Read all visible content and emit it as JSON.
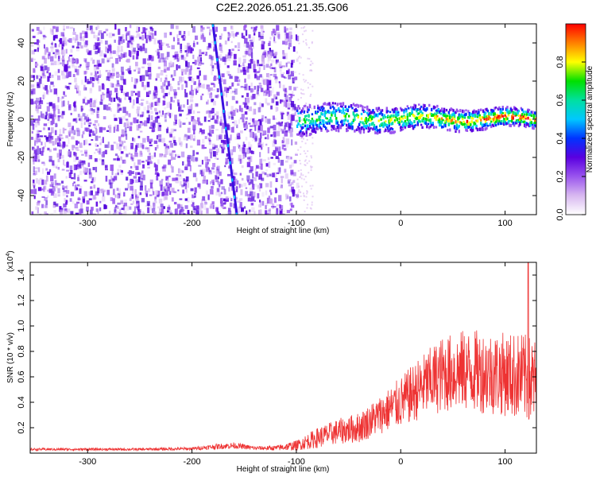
{
  "title": "C2E2.2026.051.21.35.G06",
  "chart_data": [
    {
      "type": "heatmap",
      "panel": "spectrogram",
      "xlabel": "Height of straight line (km)",
      "ylabel": "Frequency (Hz)",
      "xlim": [
        -355,
        130
      ],
      "ylim": [
        -50,
        50
      ],
      "x_ticks": [
        -300,
        -200,
        -100,
        0,
        100
      ],
      "x_tick_labels": [
        "-300",
        "-200",
        "-100",
        "0",
        "100"
      ],
      "y_ticks": [
        -40,
        -20,
        0,
        20,
        40
      ],
      "y_tick_labels": [
        "-40",
        "-20",
        "0",
        "20",
        "40"
      ],
      "colorbar": {
        "label": "Normalized spectral amplitude",
        "range": [
          0,
          1
        ],
        "ticks": [
          0.0,
          0.2,
          0.4,
          0.6,
          0.8
        ],
        "tick_labels": [
          "0.0",
          "0.2",
          "0.4",
          "0.6",
          "0.8"
        ],
        "colors": [
          "#ffffff",
          "#d8b8f0",
          "#9a55ee",
          "#5a00e0",
          "#0033ff",
          "#00c8ff",
          "#00e0a0",
          "#00e000",
          "#ffff00",
          "#ff8000",
          "#ff0000"
        ]
      },
      "features": {
        "noise_region_x": [
          -355,
          -100
        ],
        "diagonal_line": {
          "from": [
            -180,
            50
          ],
          "to": [
            -157,
            -50
          ]
        },
        "signal_track": {
          "x_range": [
            -100,
            130
          ],
          "center_hz": 1,
          "peak_amplitude": 0.9
        }
      }
    },
    {
      "type": "line",
      "panel": "snr",
      "xlabel": "Height of straight line (km)",
      "ylabel": "SNR (10 * v/v)",
      "scale_label": "(x10",
      "scale_exponent": "4",
      "scale_suffix": ")",
      "xlim": [
        -355,
        130
      ],
      "ylim": [
        0,
        1.5
      ],
      "x_ticks": [
        -300,
        -200,
        -100,
        0,
        100
      ],
      "x_tick_labels": [
        "-300",
        "-200",
        "-100",
        "0",
        "100"
      ],
      "y_ticks": [
        0.2,
        0.4,
        0.6,
        0.8,
        1.0,
        1.2,
        1.4
      ],
      "y_tick_labels": [
        "0.2",
        "0.4",
        "0.6",
        "0.8",
        "1.0",
        "1.2",
        "1.4"
      ],
      "color": "#ee3333",
      "envelope": {
        "x": [
          -355,
          -250,
          -200,
          -180,
          -160,
          -140,
          -120,
          -100,
          -80,
          -60,
          -40,
          -20,
          0,
          20,
          40,
          60,
          80,
          100,
          115,
          130
        ],
        "mean": [
          0.03,
          0.03,
          0.035,
          0.05,
          0.06,
          0.04,
          0.04,
          0.06,
          0.12,
          0.17,
          0.2,
          0.3,
          0.4,
          0.52,
          0.62,
          0.65,
          0.64,
          0.62,
          0.6,
          0.55
        ],
        "spread": [
          0.01,
          0.01,
          0.012,
          0.02,
          0.025,
          0.015,
          0.02,
          0.04,
          0.08,
          0.1,
          0.12,
          0.15,
          0.2,
          0.25,
          0.3,
          0.32,
          0.33,
          0.33,
          0.35,
          0.35
        ]
      },
      "peak": {
        "x": 122,
        "y": 1.5
      }
    }
  ]
}
